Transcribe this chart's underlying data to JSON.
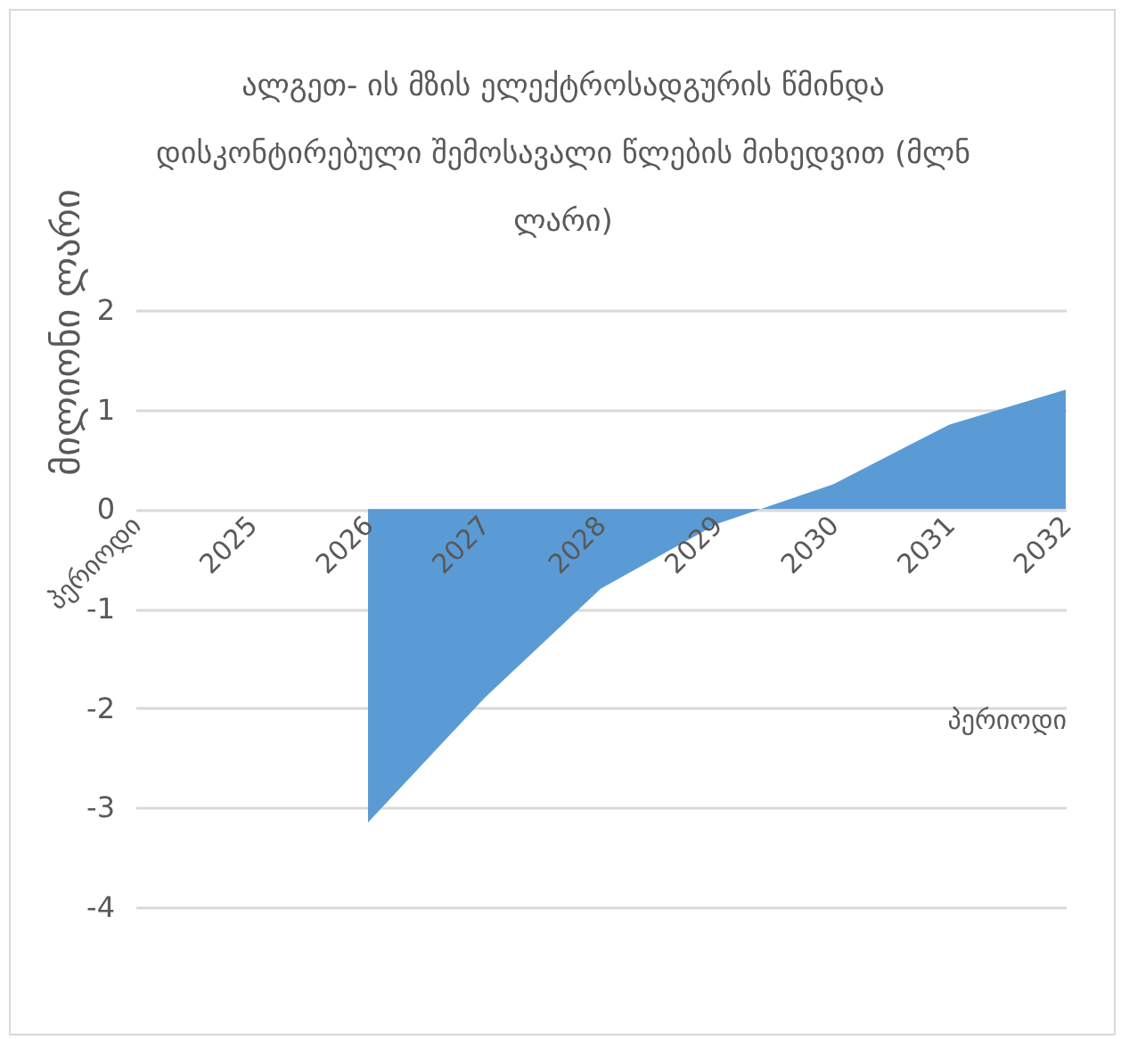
{
  "chart_data": {
    "type": "area",
    "title": "ალგეთ- ის მზის ელექტროსადგურის წმინდა დისკონტირებული შემოსავალი წლების მიხედვით (მლნ ლარი)",
    "xlabel": "პერიოდი",
    "ylabel": "მილიონი ლარი",
    "categories": [
      "პერიოდი",
      "2025",
      "2026",
      "2027",
      "2028",
      "2029",
      "2030",
      "2031",
      "2032"
    ],
    "values": [
      null,
      null,
      -3.15,
      -1.9,
      -0.8,
      -0.15,
      0.25,
      0.85,
      1.2
    ],
    "color": "#5b9bd5",
    "ylim": [
      -4,
      2
    ],
    "yticks": [
      -4,
      -3,
      -2,
      -1,
      0,
      1,
      2
    ],
    "grid": "y"
  }
}
